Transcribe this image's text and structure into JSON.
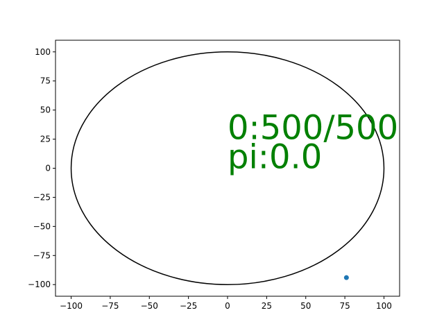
{
  "chart_data": {
    "type": "scatter",
    "title": "",
    "xlabel": "",
    "ylabel": "",
    "xlim": [
      -110,
      110
    ],
    "ylim": [
      -110,
      110
    ],
    "grid": false,
    "x_ticks": [
      -100,
      -75,
      -50,
      -25,
      0,
      25,
      50,
      75,
      100
    ],
    "y_ticks": [
      -100,
      -75,
      -50,
      -25,
      0,
      25,
      50,
      75,
      100
    ],
    "x_tick_labels": [
      "−100",
      "−75",
      "−50",
      "−25",
      "0",
      "25",
      "50",
      "75",
      "100"
    ],
    "y_tick_labels": [
      "−100",
      "−75",
      "−50",
      "−25",
      "0",
      "25",
      "50",
      "75",
      "100"
    ],
    "circle": {
      "center": [
        0,
        0
      ],
      "radius": 100,
      "color": "#000000"
    },
    "points": [
      {
        "x": 76,
        "y": -94,
        "color": "#1f77b4"
      }
    ],
    "annotations": [
      {
        "text": "0:500/500",
        "x": 0,
        "y": 25,
        "color": "#008000"
      },
      {
        "text": "pi:0.0",
        "x": 0,
        "y": 0,
        "color": "#008000"
      }
    ]
  }
}
